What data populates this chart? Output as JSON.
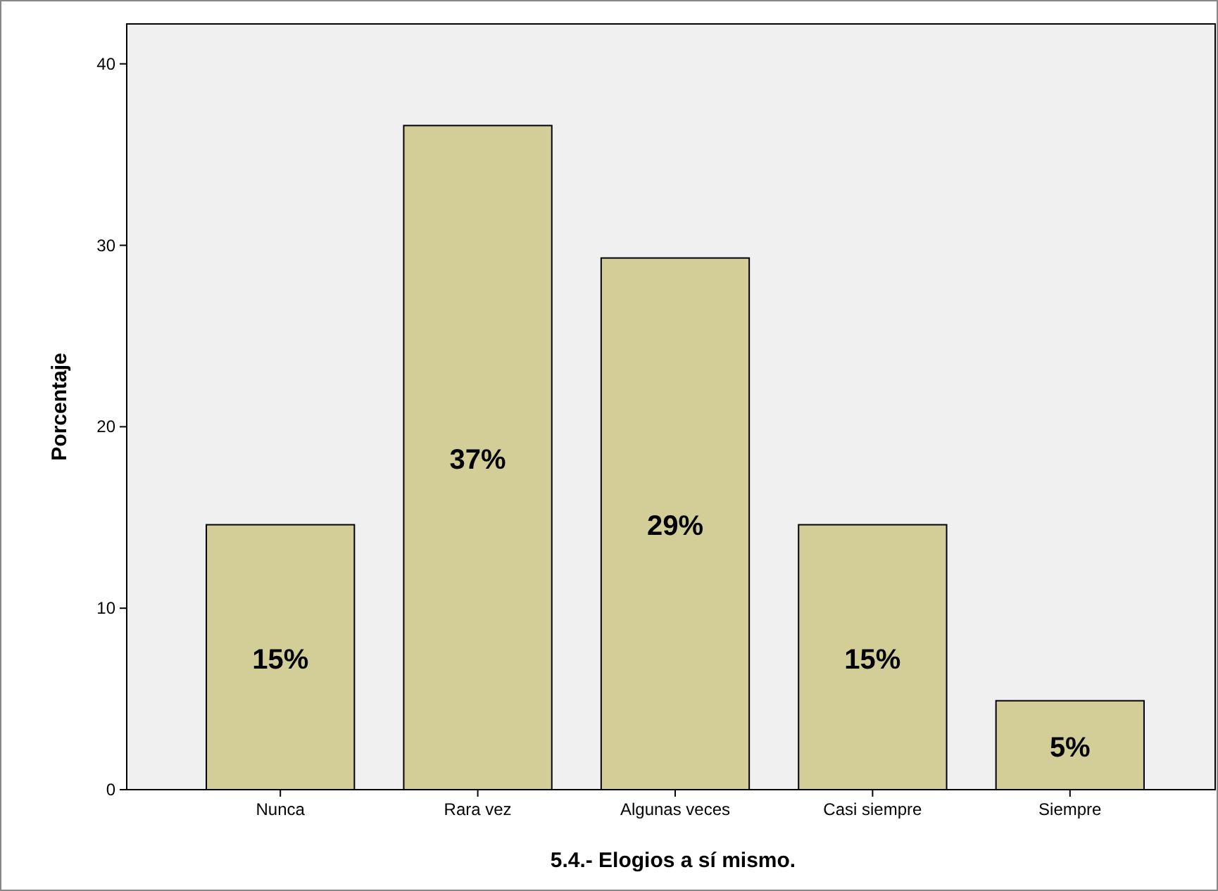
{
  "chart_data": {
    "type": "bar",
    "xlabel": "5.4.- Elogios a sí mismo.",
    "ylabel": "Porcentaje",
    "categories": [
      "Nunca",
      "Rara vez",
      "Algunas veces",
      "Casi siempre",
      "Siempre"
    ],
    "values": [
      14.6,
      36.6,
      29.3,
      14.6,
      4.9
    ],
    "value_labels": [
      "15%",
      "37%",
      "29%",
      "15%",
      "5%"
    ],
    "color": "#d3ce97",
    "ylim": [
      0,
      42.2
    ],
    "yticks": [
      0,
      10,
      20,
      30,
      40
    ],
    "grid": false
  }
}
